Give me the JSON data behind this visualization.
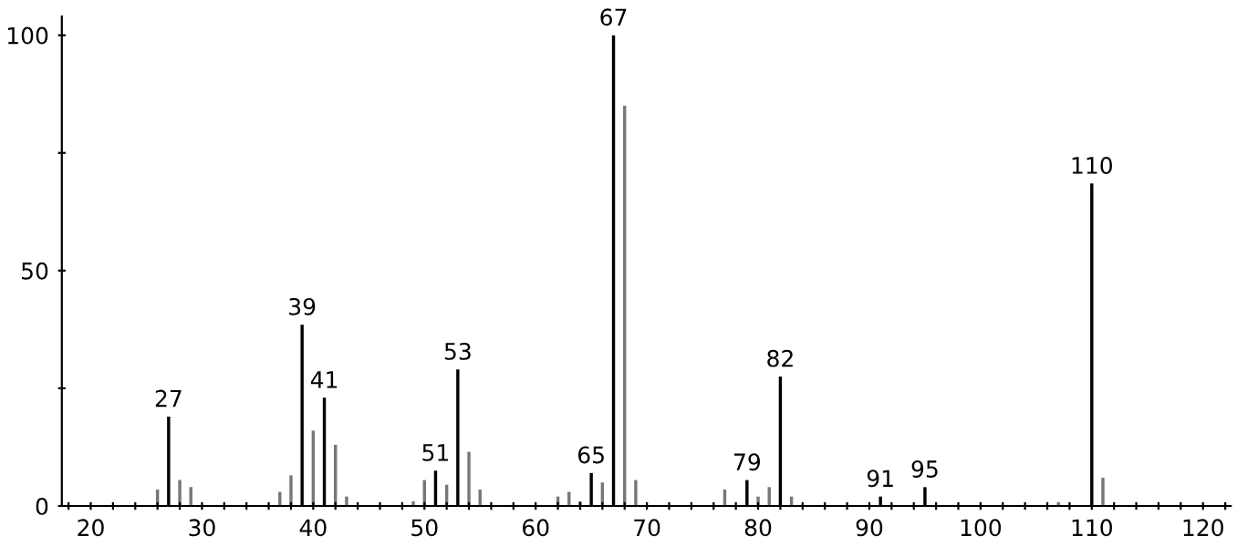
{
  "chart_data": {
    "type": "bar",
    "x": [
      26,
      27,
      28,
      29,
      30,
      37,
      38,
      39,
      40,
      41,
      42,
      43,
      49,
      50,
      51,
      52,
      53,
      54,
      55,
      56,
      62,
      63,
      64,
      65,
      66,
      67,
      68,
      69,
      74,
      77,
      78,
      79,
      80,
      81,
      82,
      83,
      91,
      92,
      94,
      95,
      107,
      108,
      110,
      111
    ],
    "values": [
      3.5,
      19,
      5.5,
      4,
      null,
      3,
      6.5,
      38.5,
      16,
      23,
      13,
      2,
      1,
      5.5,
      7.5,
      4.5,
      29,
      11.5,
      3.5,
      null,
      2,
      3,
      1,
      7,
      5,
      100,
      85,
      5.5,
      null,
      3.5,
      null,
      5.5,
      2,
      4,
      27.5,
      2,
      2,
      null,
      null,
      4,
      0.8,
      null,
      68.5,
      6
    ],
    "annotations": [
      {
        "text": "27",
        "x": 27,
        "y": 19
      },
      {
        "text": "39",
        "x": 39,
        "y": 38.5
      },
      {
        "text": "41",
        "x": 41,
        "y": 23
      },
      {
        "text": "51",
        "x": 51,
        "y": 7.5
      },
      {
        "text": "53",
        "x": 53,
        "y": 29
      },
      {
        "text": "65",
        "x": 65,
        "y": 7
      },
      {
        "text": "67",
        "x": 67,
        "y": 100
      },
      {
        "text": "79",
        "x": 79,
        "y": 5.5
      },
      {
        "text": "82",
        "x": 82,
        "y": 27.5
      },
      {
        "text": "91",
        "x": 91,
        "y": 2
      },
      {
        "text": "95",
        "x": 95,
        "y": 4
      },
      {
        "text": "110",
        "x": 110,
        "y": 68.5
      }
    ],
    "colors": [
      "#777777",
      "#000000",
      "#777777",
      "#777777",
      "#777777",
      "#777777",
      "#777777",
      "#000000",
      "#777777",
      "#000000",
      "#777777",
      "#777777",
      "#777777",
      "#777777",
      "#000000",
      "#777777",
      "#000000",
      "#777777",
      "#777777",
      "#777777",
      "#777777",
      "#777777",
      "#777777",
      "#000000",
      "#777777",
      "#000000",
      "#777777",
      "#777777",
      "#777777",
      "#777777",
      "#777777",
      "#000000",
      "#777777",
      "#777777",
      "#000000",
      "#777777",
      "#000000",
      "#777777",
      "#777777",
      "#000000",
      "#777777",
      "#777777",
      "#000000",
      "#777777"
    ],
    "xlim": [
      17.4,
      122.5
    ],
    "ylim": [
      0,
      104
    ],
    "xticks": [
      {
        "value": 18,
        "label": null
      },
      20,
      {
        "value": 22,
        "label": null
      },
      {
        "value": 24,
        "label": null
      },
      {
        "value": 26,
        "label": null
      },
      {
        "value": 28,
        "label": null
      },
      30,
      {
        "value": 32,
        "label": null
      },
      {
        "value": 34,
        "label": null
      },
      {
        "value": 36,
        "label": null
      },
      {
        "value": 38,
        "label": null
      },
      40,
      {
        "value": 42,
        "label": null
      },
      {
        "value": 44,
        "label": null
      },
      {
        "value": 46,
        "label": null
      },
      {
        "value": 48,
        "label": null
      },
      50,
      {
        "value": 52,
        "label": null
      },
      {
        "value": 54,
        "label": null
      },
      {
        "value": 56,
        "label": null
      },
      {
        "value": 58,
        "label": null
      },
      60,
      {
        "value": 62,
        "label": null
      },
      {
        "value": 64,
        "label": null
      },
      {
        "value": 66,
        "label": null
      },
      {
        "value": 68,
        "label": null
      },
      70,
      {
        "value": 72,
        "label": null
      },
      {
        "value": 74,
        "label": null
      },
      {
        "value": 76,
        "label": null
      },
      {
        "value": 78,
        "label": null
      },
      80,
      {
        "value": 82,
        "label": null
      },
      {
        "value": 84,
        "label": null
      },
      {
        "value": 86,
        "label": null
      },
      {
        "value": 88,
        "label": null
      },
      90,
      {
        "value": 92,
        "label": null
      },
      {
        "value": 94,
        "label": null
      },
      {
        "value": 96,
        "label": null
      },
      {
        "value": 98,
        "label": null
      },
      100,
      {
        "value": 102,
        "label": null
      },
      {
        "value": 104,
        "label": null
      },
      {
        "value": 106,
        "label": null
      },
      {
        "value": 108,
        "label": null
      },
      110,
      {
        "value": 112,
        "label": null
      },
      {
        "value": 114,
        "label": null
      },
      {
        "value": 116,
        "label": null
      },
      {
        "value": 118,
        "label": null
      },
      120,
      {
        "value": 122,
        "label": null
      }
    ],
    "yticks": [
      0,
      {
        "value": 25,
        "label": null
      },
      50,
      {
        "value": 75,
        "label": null
      },
      100
    ],
    "grid": false
  }
}
